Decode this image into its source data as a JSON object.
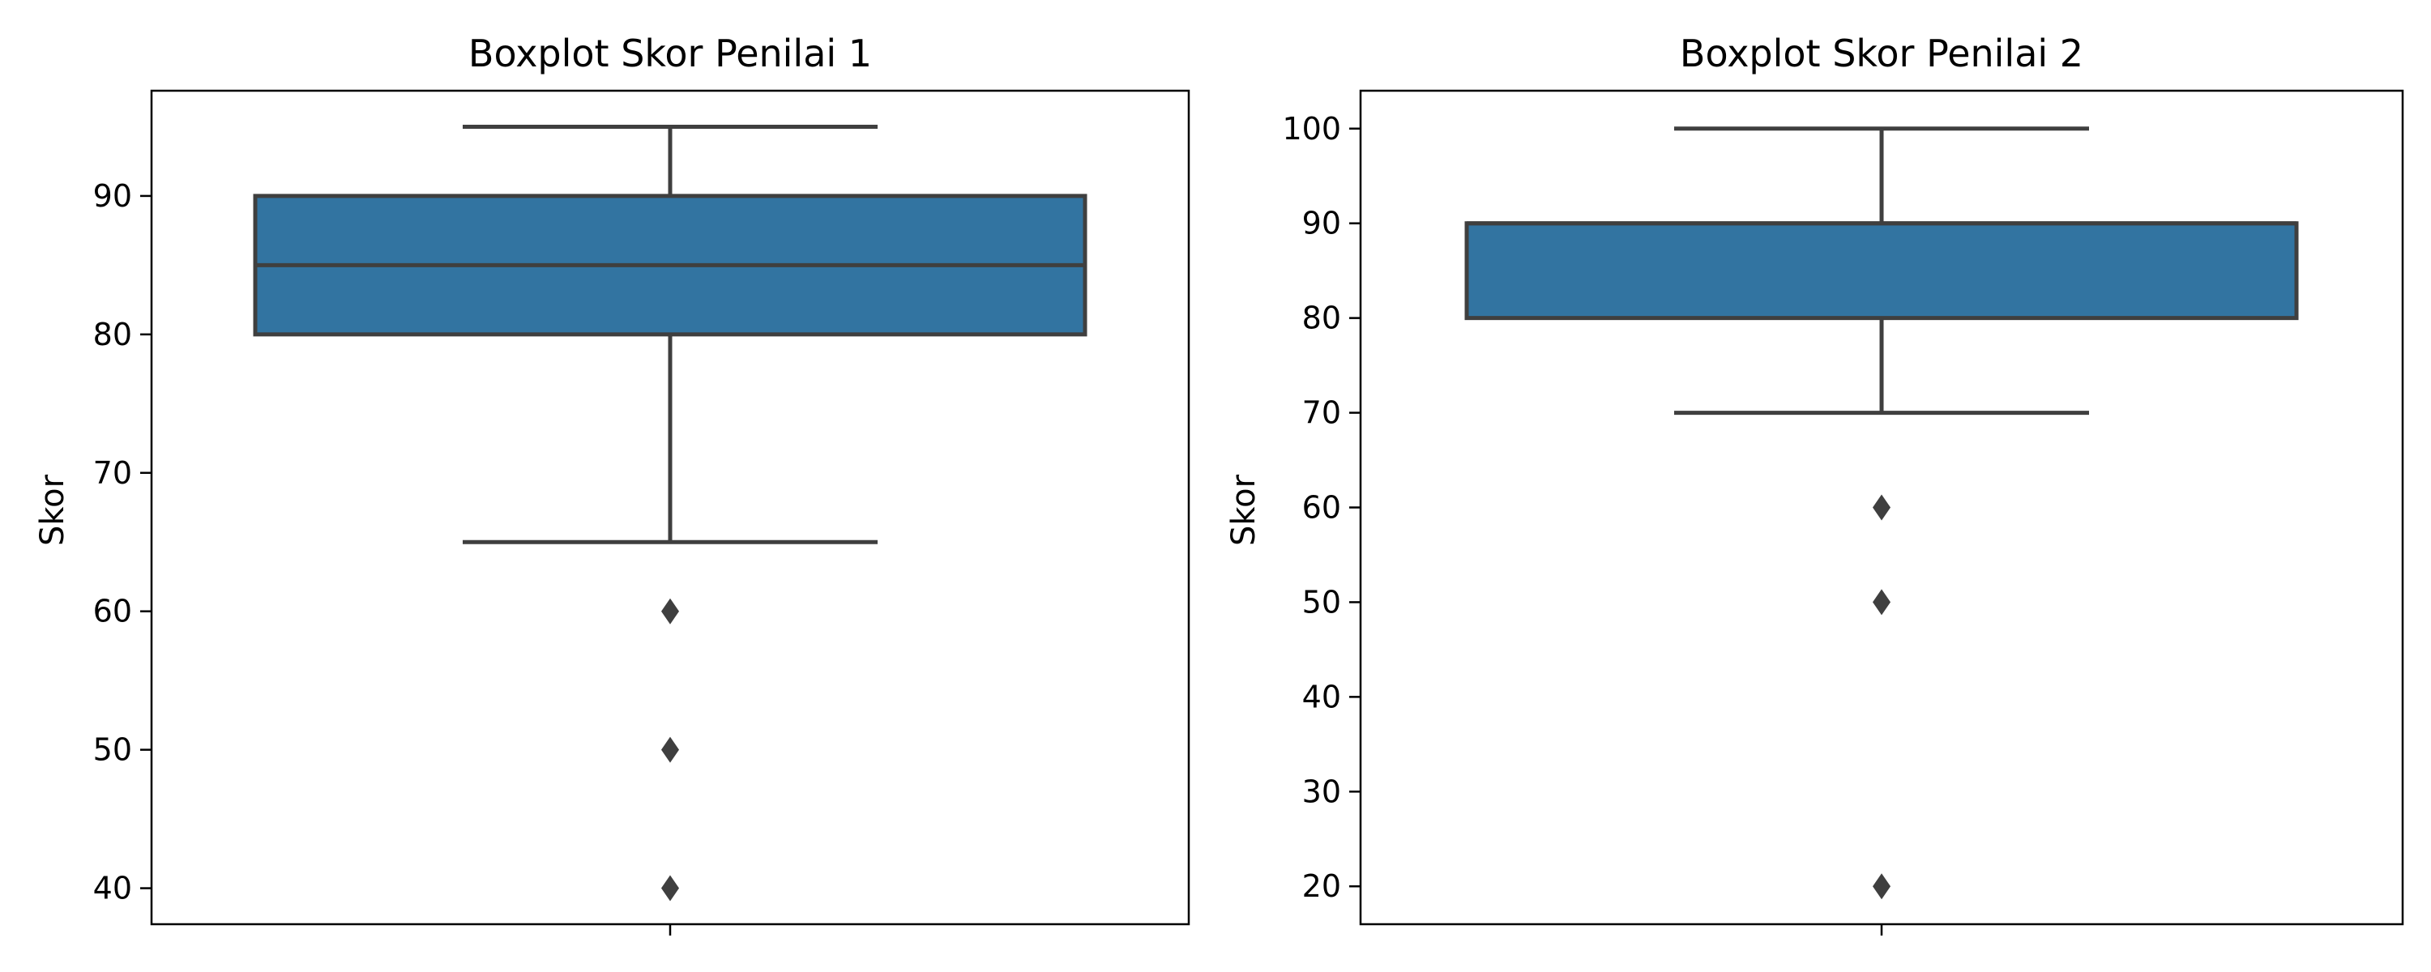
{
  "figure": {
    "background": "#ffffff"
  },
  "chart_data": [
    {
      "type": "boxplot",
      "title": "Boxplot Skor Penilai 1",
      "xlabel": "",
      "ylabel": "Skor",
      "ylim": [
        37.4,
        97.6
      ],
      "yticks": [
        40,
        50,
        60,
        70,
        80,
        90
      ],
      "box": {
        "whisker_low": 65,
        "q1": 80,
        "median": 85,
        "q3": 90,
        "whisker_high": 95
      },
      "outliers": [
        60,
        50,
        40
      ],
      "box_color": "#3274a1",
      "line_color": "#3f3f3f"
    },
    {
      "type": "boxplot",
      "title": "Boxplot Skor Penilai 2",
      "xlabel": "",
      "ylabel": "Skor",
      "ylim": [
        16,
        104
      ],
      "yticks": [
        20,
        30,
        40,
        50,
        60,
        70,
        80,
        90,
        100
      ],
      "box": {
        "whisker_low": 70,
        "q1": 80,
        "median": 90,
        "q3": 90,
        "whisker_high": 100
      },
      "outliers": [
        60,
        50,
        20
      ],
      "box_color": "#3274a1",
      "line_color": "#3f3f3f"
    }
  ]
}
